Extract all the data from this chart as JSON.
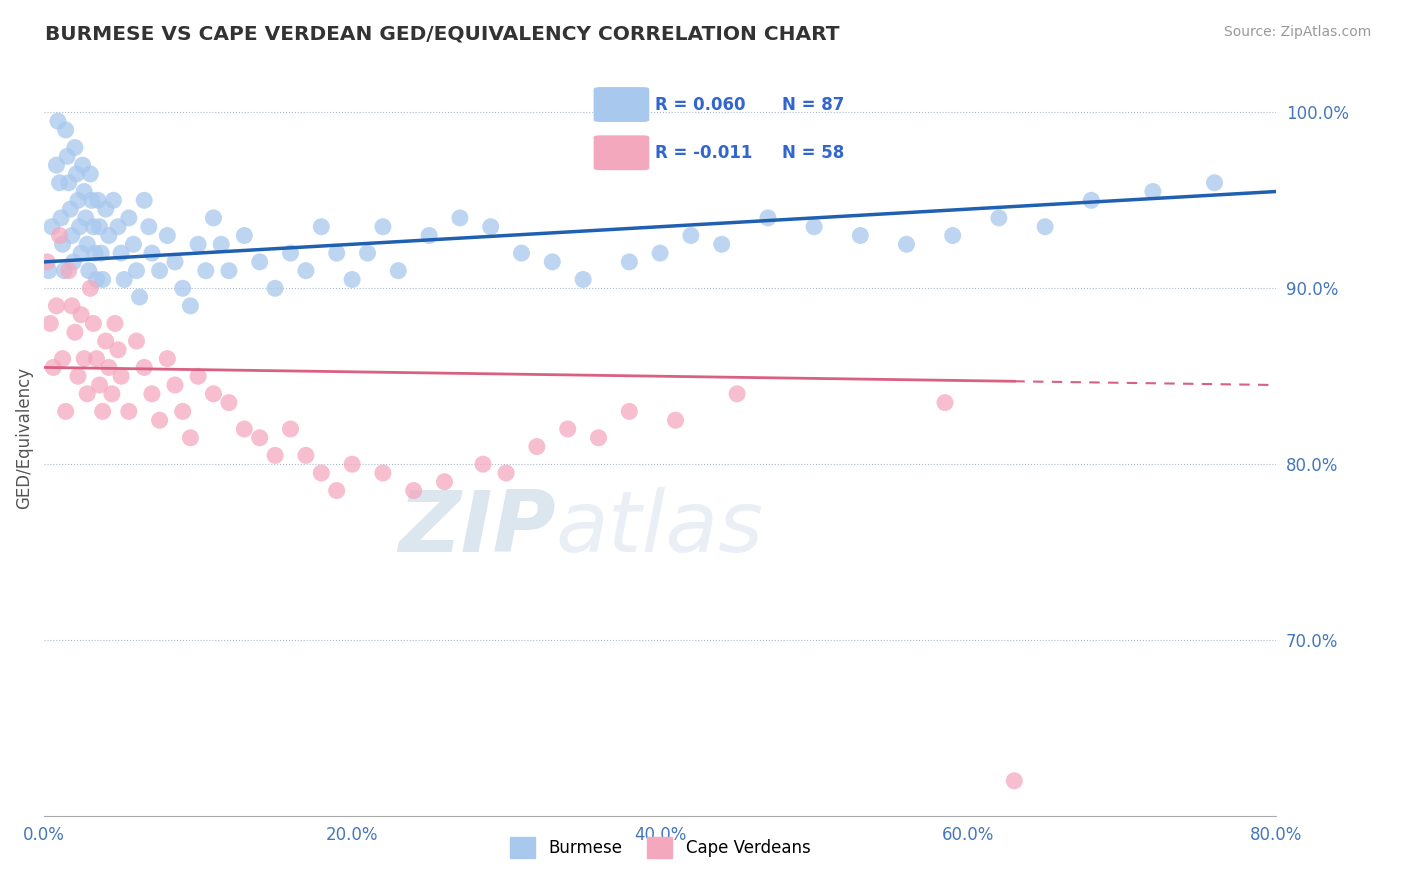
{
  "title": "BURMESE VS CAPE VERDEAN GED/EQUIVALENCY CORRELATION CHART",
  "source_text": "Source: ZipAtlas.com",
  "ylabel": "GED/Equivalency",
  "xlim": [
    0.0,
    80.0
  ],
  "ylim": [
    60.0,
    103.0
  ],
  "yticks": [
    70.0,
    80.0,
    90.0,
    100.0
  ],
  "ytick_labels": [
    "70.0%",
    "80.0%",
    "90.0%",
    "100.0%"
  ],
  "xticks": [
    0.0,
    20.0,
    40.0,
    60.0,
    80.0
  ],
  "xtick_labels": [
    "0.0%",
    "20.0%",
    "40.0%",
    "60.0%",
    "80.0%"
  ],
  "blue_color": "#A8C8EE",
  "pink_color": "#F4A8BE",
  "blue_line_color": "#2060B0",
  "pink_line_color": "#D86080",
  "watermark_zip": "ZIP",
  "watermark_atlas": "atlas",
  "burmese_x": [
    0.3,
    0.5,
    0.8,
    0.9,
    1.0,
    1.1,
    1.2,
    1.3,
    1.4,
    1.5,
    1.6,
    1.7,
    1.8,
    1.9,
    2.0,
    2.1,
    2.2,
    2.3,
    2.4,
    2.5,
    2.6,
    2.7,
    2.8,
    2.9,
    3.0,
    3.1,
    3.2,
    3.3,
    3.4,
    3.5,
    3.6,
    3.7,
    3.8,
    4.0,
    4.2,
    4.5,
    4.8,
    5.0,
    5.2,
    5.5,
    5.8,
    6.0,
    6.2,
    6.5,
    6.8,
    7.0,
    7.5,
    8.0,
    8.5,
    9.0,
    9.5,
    10.0,
    10.5,
    11.0,
    11.5,
    12.0,
    13.0,
    14.0,
    15.0,
    16.0,
    17.0,
    18.0,
    19.0,
    20.0,
    21.0,
    22.0,
    23.0,
    25.0,
    27.0,
    29.0,
    31.0,
    33.0,
    35.0,
    38.0,
    40.0,
    42.0,
    44.0,
    47.0,
    50.0,
    53.0,
    56.0,
    59.0,
    62.0,
    65.0,
    68.0,
    72.0,
    76.0
  ],
  "burmese_y": [
    91.0,
    93.5,
    97.0,
    99.5,
    96.0,
    94.0,
    92.5,
    91.0,
    99.0,
    97.5,
    96.0,
    94.5,
    93.0,
    91.5,
    98.0,
    96.5,
    95.0,
    93.5,
    92.0,
    97.0,
    95.5,
    94.0,
    92.5,
    91.0,
    96.5,
    95.0,
    93.5,
    92.0,
    90.5,
    95.0,
    93.5,
    92.0,
    90.5,
    94.5,
    93.0,
    95.0,
    93.5,
    92.0,
    90.5,
    94.0,
    92.5,
    91.0,
    89.5,
    95.0,
    93.5,
    92.0,
    91.0,
    93.0,
    91.5,
    90.0,
    89.0,
    92.5,
    91.0,
    94.0,
    92.5,
    91.0,
    93.0,
    91.5,
    90.0,
    92.0,
    91.0,
    93.5,
    92.0,
    90.5,
    92.0,
    93.5,
    91.0,
    93.0,
    94.0,
    93.5,
    92.0,
    91.5,
    90.5,
    91.5,
    92.0,
    93.0,
    92.5,
    94.0,
    93.5,
    93.0,
    92.5,
    93.0,
    94.0,
    93.5,
    95.0,
    95.5,
    96.0
  ],
  "capeverdean_x": [
    0.2,
    0.4,
    0.6,
    0.8,
    1.0,
    1.2,
    1.4,
    1.6,
    1.8,
    2.0,
    2.2,
    2.4,
    2.6,
    2.8,
    3.0,
    3.2,
    3.4,
    3.6,
    3.8,
    4.0,
    4.2,
    4.4,
    4.6,
    4.8,
    5.0,
    5.5,
    6.0,
    6.5,
    7.0,
    7.5,
    8.0,
    8.5,
    9.0,
    9.5,
    10.0,
    11.0,
    12.0,
    13.0,
    14.0,
    15.0,
    16.0,
    17.0,
    18.0,
    19.0,
    20.0,
    22.0,
    24.0,
    26.0,
    28.5,
    30.0,
    32.0,
    34.0,
    36.0,
    38.0,
    41.0,
    45.0,
    58.5,
    63.0
  ],
  "capeverdean_y": [
    91.5,
    88.0,
    85.5,
    89.0,
    93.0,
    86.0,
    83.0,
    91.0,
    89.0,
    87.5,
    85.0,
    88.5,
    86.0,
    84.0,
    90.0,
    88.0,
    86.0,
    84.5,
    83.0,
    87.0,
    85.5,
    84.0,
    88.0,
    86.5,
    85.0,
    83.0,
    87.0,
    85.5,
    84.0,
    82.5,
    86.0,
    84.5,
    83.0,
    81.5,
    85.0,
    84.0,
    83.5,
    82.0,
    81.5,
    80.5,
    82.0,
    80.5,
    79.5,
    78.5,
    80.0,
    79.5,
    78.5,
    79.0,
    80.0,
    79.5,
    81.0,
    82.0,
    81.5,
    83.0,
    82.5,
    84.0,
    83.5,
    62.0
  ],
  "blue_trend_x0": 0.0,
  "blue_trend_y0": 91.5,
  "blue_trend_x1": 80.0,
  "blue_trend_y1": 95.5,
  "pink_trend_x0": 0.0,
  "pink_trend_y0": 85.5,
  "pink_trend_x1": 80.0,
  "pink_trend_y1": 84.5,
  "pink_solid_end": 63.0
}
